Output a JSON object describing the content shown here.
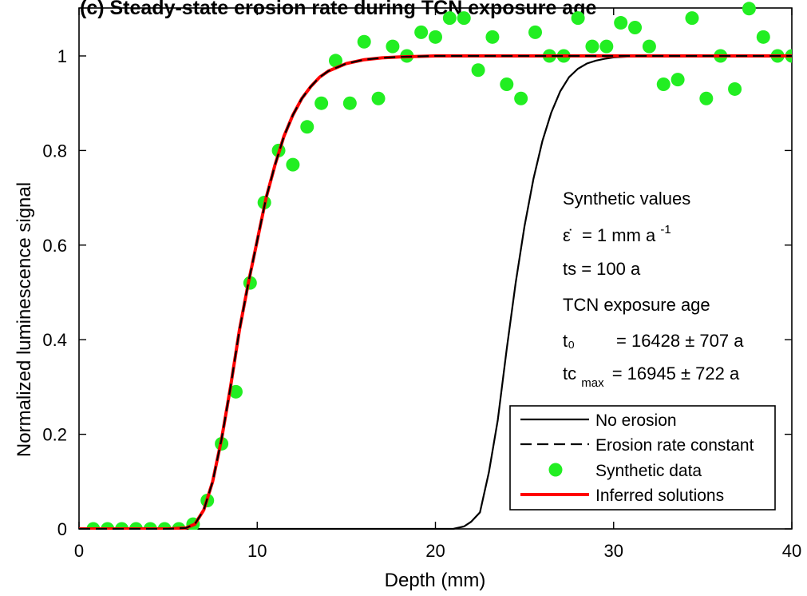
{
  "chart_data": {
    "type": "line",
    "title": "(c) Steady-state erosion rate during TCN exposure age",
    "xlabel": "Depth (mm)",
    "ylabel": "Normalized luminescence signal",
    "xlim": [
      0,
      40
    ],
    "ylim": [
      0,
      1.1
    ],
    "x_ticks": [
      0,
      10,
      20,
      30,
      40
    ],
    "y_ticks": [
      0,
      0.2,
      0.4,
      0.6,
      0.8,
      1
    ],
    "grid": false,
    "legend_position": "bottom-right",
    "series": [
      {
        "name": "No erosion",
        "style": "solid",
        "color": "#000000",
        "x": [
          0,
          19,
          20,
          21,
          21.6,
          22,
          22.5,
          23,
          23.5,
          24,
          24.5,
          25,
          25.5,
          26,
          26.5,
          27,
          27.5,
          28,
          28.5,
          29,
          29.5,
          30,
          31,
          32,
          33,
          34,
          35,
          40
        ],
        "y": [
          0,
          0,
          0,
          0,
          0.005,
          0.015,
          0.035,
          0.12,
          0.23,
          0.38,
          0.52,
          0.64,
          0.74,
          0.82,
          0.88,
          0.925,
          0.955,
          0.973,
          0.984,
          0.99,
          0.994,
          0.997,
          0.999,
          1.0,
          1.0,
          1.0,
          1.0,
          1.0
        ]
      },
      {
        "name": "Erosion rate constant",
        "style": "dashed",
        "color": "#000000",
        "x": [
          0,
          5,
          6,
          6.5,
          7,
          7.5,
          8,
          8.5,
          9,
          9.5,
          10,
          10.5,
          11,
          11.5,
          12,
          12.5,
          13,
          13.5,
          14,
          15,
          16,
          17,
          18,
          19,
          20,
          25,
          30,
          35,
          40
        ],
        "y": [
          0,
          0,
          0.002,
          0.01,
          0.04,
          0.1,
          0.19,
          0.3,
          0.42,
          0.52,
          0.61,
          0.7,
          0.77,
          0.83,
          0.875,
          0.91,
          0.935,
          0.955,
          0.968,
          0.984,
          0.992,
          0.996,
          0.998,
          0.999,
          1.0,
          1.0,
          1.0,
          1.0,
          1.0
        ]
      },
      {
        "name": "Synthetic data",
        "style": "markers",
        "color": "#22ee22",
        "x": [
          0.8,
          1.6,
          2.4,
          3.2,
          4.0,
          4.8,
          5.6,
          6.4,
          7.2,
          8.0,
          8.8,
          9.6,
          10.4,
          11.2,
          12.0,
          12.8,
          13.6,
          14.4,
          15.2,
          16.0,
          16.8,
          17.6,
          18.4,
          19.2,
          20.0,
          20.8,
          21.6,
          22.4,
          23.2,
          24.0,
          24.8,
          25.6,
          26.4,
          27.2,
          28.0,
          28.8,
          29.6,
          30.4,
          31.2,
          32.0,
          32.8,
          33.6,
          34.4,
          35.2,
          36.0,
          36.8,
          37.6,
          38.4,
          39.2,
          40.0
        ],
        "y": [
          0,
          0,
          0,
          0,
          0,
          0,
          0,
          0.01,
          0.06,
          0.18,
          0.29,
          0.52,
          0.69,
          0.8,
          0.77,
          0.85,
          0.9,
          0.99,
          0.9,
          1.03,
          0.91,
          1.02,
          1.0,
          1.05,
          1.04,
          1.08,
          1.08,
          0.97,
          1.04,
          0.94,
          0.91,
          1.05,
          1.0,
          1.0,
          1.08,
          1.02,
          1.02,
          1.07,
          1.06,
          1.02,
          0.94,
          0.95,
          1.08,
          0.91,
          1.0,
          0.93,
          1.1,
          1.04,
          1.0,
          1.0
        ]
      },
      {
        "name": "Inferred solutions",
        "style": "solid",
        "color": "#ff0000",
        "x": [
          0,
          5,
          6,
          6.5,
          7,
          7.5,
          8,
          8.5,
          9,
          9.5,
          10,
          10.5,
          11,
          11.5,
          12,
          12.5,
          13,
          13.5,
          14,
          15,
          16,
          17,
          18,
          19,
          20,
          25,
          30,
          35,
          40
        ],
        "y": [
          0,
          0,
          0.002,
          0.01,
          0.04,
          0.1,
          0.19,
          0.3,
          0.42,
          0.52,
          0.61,
          0.7,
          0.77,
          0.83,
          0.875,
          0.91,
          0.935,
          0.955,
          0.968,
          0.984,
          0.992,
          0.996,
          0.998,
          0.999,
          1.0,
          1.0,
          1.0,
          1.0,
          1.0
        ]
      }
    ],
    "annotations": {
      "heading": "Synthetic values",
      "erosion_symbol": "ε̇",
      "erosion_value": "= 1 mm a",
      "erosion_exp": "-1",
      "ts": "ts = 100 a",
      "tcn_heading": "TCN exposure age",
      "t0_label": "t₀",
      "t0_value": "= 16428 ± 707 a",
      "tc_label": "tc",
      "tc_sub": "max",
      "tc_value": "= 16945 ± 722 a"
    }
  }
}
